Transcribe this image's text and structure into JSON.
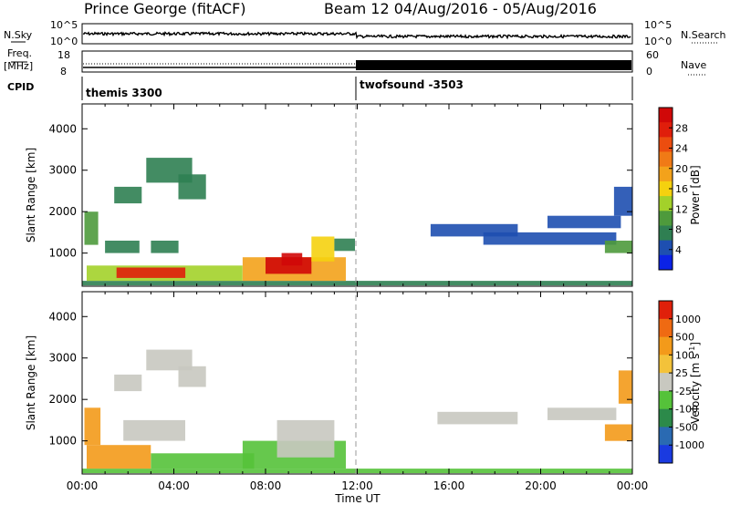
{
  "header": {
    "station": "Prince George (fitACF)",
    "beam": "Beam 12 04/Aug/2016 - 05/Aug/2016"
  },
  "top_panels": {
    "nsky_label": "N.Sky",
    "nsearch_label": "N.Search",
    "nsky_ticks": [
      "10^5",
      "10^0"
    ],
    "freq_label": "Freq.",
    "freq_unit": "[MHz]",
    "freq_ticks": [
      "18",
      "8"
    ],
    "nave_label": "Nave",
    "nave_ticks": [
      "60",
      "0"
    ],
    "cpid_label": "CPID",
    "cpid_modes": [
      {
        "name": "themis 3300",
        "start_hour": 0
      },
      {
        "name": "twofsound -3503",
        "start_hour": 12
      }
    ]
  },
  "chart_data": [
    {
      "type": "heatmap",
      "panel": "power",
      "ylabel": "Slant Range [km]",
      "ylim": [
        200,
        4600
      ],
      "yticks": [
        1000,
        2000,
        3000,
        4000
      ],
      "xlim": [
        0,
        24
      ],
      "colorbar": {
        "label": "Power [dB]",
        "ticks": [
          "4",
          "8",
          "12",
          "16",
          "20",
          "24",
          "28"
        ],
        "colors": [
          "#0b22e6",
          "#1e4fb0",
          "#2f7f52",
          "#4e9a3c",
          "#a3d12a",
          "#f5d10f",
          "#f3a21b",
          "#f07a16",
          "#ec4d0f",
          "#e01e0b",
          "#d00808"
        ]
      },
      "regions": [
        {
          "t": [
            0.0,
            24.0
          ],
          "r": [
            220,
            330
          ],
          "v": 2
        },
        {
          "t": [
            0.2,
            7.0
          ],
          "r": [
            330,
            700
          ],
          "v": 4
        },
        {
          "t": [
            7.0,
            11.5
          ],
          "r": [
            330,
            900
          ],
          "v": 6
        },
        {
          "t": [
            1.5,
            4.5
          ],
          "r": [
            400,
            650
          ],
          "v": 9
        },
        {
          "t": [
            8.0,
            10.0
          ],
          "r": [
            500,
            900
          ],
          "v": 10
        },
        {
          "t": [
            8.7,
            9.6
          ],
          "r": [
            700,
            1000
          ],
          "v": 10
        },
        {
          "t": [
            10.0,
            11.0
          ],
          "r": [
            800,
            1400
          ],
          "v": 5
        },
        {
          "t": [
            1.0,
            2.5
          ],
          "r": [
            1000,
            1300
          ],
          "v": 2
        },
        {
          "t": [
            3.0,
            4.2
          ],
          "r": [
            1000,
            1300
          ],
          "v": 2
        },
        {
          "t": [
            11.0,
            11.9
          ],
          "r": [
            1050,
            1350
          ],
          "v": 2
        },
        {
          "t": [
            0.1,
            0.7
          ],
          "r": [
            1200,
            2000
          ],
          "v": 3
        },
        {
          "t": [
            1.4,
            2.6
          ],
          "r": [
            2200,
            2600
          ],
          "v": 2
        },
        {
          "t": [
            2.8,
            4.8
          ],
          "r": [
            2700,
            3300
          ],
          "v": 2
        },
        {
          "t": [
            4.2,
            5.4
          ],
          "r": [
            2300,
            2900
          ],
          "v": 2
        },
        {
          "t": [
            15.2,
            19.0
          ],
          "r": [
            1400,
            1700
          ],
          "v": 1
        },
        {
          "t": [
            17.5,
            23.3
          ],
          "r": [
            1200,
            1500
          ],
          "v": 1
        },
        {
          "t": [
            20.3,
            23.5
          ],
          "r": [
            1600,
            1900
          ],
          "v": 1
        },
        {
          "t": [
            22.8,
            24.0
          ],
          "r": [
            1000,
            1300
          ],
          "v": 3
        },
        {
          "t": [
            23.2,
            24.0
          ],
          "r": [
            1900,
            2600
          ],
          "v": 1
        }
      ]
    },
    {
      "type": "heatmap",
      "panel": "velocity",
      "ylabel": "Slant Range [km]",
      "xlabel": "Time UT",
      "ylim": [
        200,
        4600
      ],
      "yticks": [
        1000,
        2000,
        3000,
        4000
      ],
      "xlim": [
        0,
        24
      ],
      "xticks": [
        "00:00",
        "04:00",
        "08:00",
        "12:00",
        "16:00",
        "20:00",
        "00:00"
      ],
      "colorbar": {
        "label": "Velocity [m s^-1]",
        "ticks": [
          "1000",
          "500",
          "100",
          "25",
          "-25",
          "-100",
          "-500",
          "-1000"
        ],
        "colors": [
          "#1a3ae0",
          "#2a6ab2",
          "#2c8a4a",
          "#55c23a",
          "#c8c8c0",
          "#f3c23a",
          "#f39a1a",
          "#ef6a12",
          "#e0200a"
        ]
      },
      "regions": [
        {
          "t": [
            0.0,
            24.0
          ],
          "r": [
            220,
            330
          ],
          "v": 3
        },
        {
          "t": [
            0.2,
            3.0
          ],
          "r": [
            330,
            900
          ],
          "v": 6
        },
        {
          "t": [
            0.1,
            0.8
          ],
          "r": [
            900,
            1800
          ],
          "v": 6
        },
        {
          "t": [
            3.0,
            7.5
          ],
          "r": [
            330,
            700
          ],
          "v": 3
        },
        {
          "t": [
            7.0,
            11.5
          ],
          "r": [
            330,
            1000
          ],
          "v": 3
        },
        {
          "t": [
            8.5,
            11.0
          ],
          "r": [
            600,
            1500
          ],
          "v": 4
        },
        {
          "t": [
            1.8,
            4.5
          ],
          "r": [
            1000,
            1500
          ],
          "v": 4
        },
        {
          "t": [
            2.8,
            4.8
          ],
          "r": [
            2700,
            3200
          ],
          "v": 4
        },
        {
          "t": [
            4.2,
            5.4
          ],
          "r": [
            2300,
            2800
          ],
          "v": 4
        },
        {
          "t": [
            1.4,
            2.6
          ],
          "r": [
            2200,
            2600
          ],
          "v": 4
        },
        {
          "t": [
            15.5,
            19.0
          ],
          "r": [
            1400,
            1700
          ],
          "v": 4
        },
        {
          "t": [
            20.3,
            23.3
          ],
          "r": [
            1500,
            1800
          ],
          "v": 4
        },
        {
          "t": [
            22.8,
            24.0
          ],
          "r": [
            1000,
            1400
          ],
          "v": 6
        },
        {
          "t": [
            23.4,
            24.0
          ],
          "r": [
            1900,
            2700
          ],
          "v": 6
        }
      ]
    }
  ]
}
